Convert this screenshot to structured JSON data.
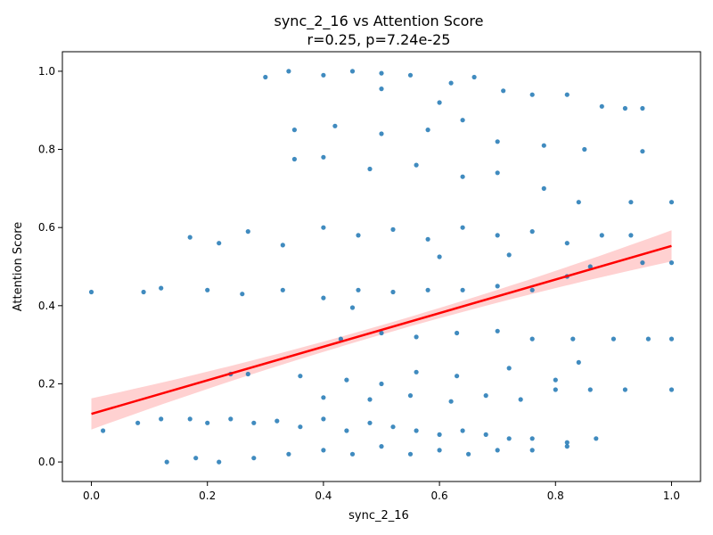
{
  "chart_data": {
    "type": "scatter",
    "title": "sync_2_16 vs Attention Score",
    "subtitle": "r=0.25, p=7.24e-25",
    "xlabel": "sync_2_16",
    "ylabel": "Attention Score",
    "xlim": [
      -0.05,
      1.05
    ],
    "ylim": [
      -0.05,
      1.05
    ],
    "xticks": [
      "0.0",
      "0.2",
      "0.4",
      "0.6",
      "0.8",
      "1.0"
    ],
    "xtick_values": [
      0.0,
      0.2,
      0.4,
      0.6,
      0.8,
      1.0
    ],
    "yticks": [
      "0.0",
      "0.2",
      "0.4",
      "0.6",
      "0.8",
      "1.0"
    ],
    "ytick_values": [
      0.0,
      0.2,
      0.4,
      0.6,
      0.8,
      1.0
    ],
    "grid": false,
    "colors": {
      "points": "#1f77b4",
      "regression": "#ff0000",
      "ci_band": "#ffb3b3"
    },
    "regression": {
      "slope": 0.43,
      "intercept": 0.123,
      "x_range": [
        0.0,
        1.0
      ],
      "ci_halfwidth_at_ends": 0.04,
      "ci_halfwidth_at_center": 0.012
    },
    "points": [
      {
        "x": 0.3,
        "y": 0.985
      },
      {
        "x": 0.34,
        "y": 1.0
      },
      {
        "x": 0.4,
        "y": 0.99
      },
      {
        "x": 0.45,
        "y": 1.0
      },
      {
        "x": 0.5,
        "y": 0.995
      },
      {
        "x": 0.55,
        "y": 0.99
      },
      {
        "x": 0.62,
        "y": 0.97
      },
      {
        "x": 0.66,
        "y": 0.985
      },
      {
        "x": 0.71,
        "y": 0.95
      },
      {
        "x": 0.76,
        "y": 0.94
      },
      {
        "x": 0.82,
        "y": 0.94
      },
      {
        "x": 0.88,
        "y": 0.91
      },
      {
        "x": 0.92,
        "y": 0.905
      },
      {
        "x": 0.95,
        "y": 0.905
      },
      {
        "x": 0.5,
        "y": 0.955
      },
      {
        "x": 0.6,
        "y": 0.92
      },
      {
        "x": 0.35,
        "y": 0.85
      },
      {
        "x": 0.42,
        "y": 0.86
      },
      {
        "x": 0.5,
        "y": 0.84
      },
      {
        "x": 0.58,
        "y": 0.85
      },
      {
        "x": 0.64,
        "y": 0.875
      },
      {
        "x": 0.7,
        "y": 0.82
      },
      {
        "x": 0.78,
        "y": 0.81
      },
      {
        "x": 0.85,
        "y": 0.8
      },
      {
        "x": 0.95,
        "y": 0.795
      },
      {
        "x": 0.4,
        "y": 0.78
      },
      {
        "x": 0.48,
        "y": 0.75
      },
      {
        "x": 0.56,
        "y": 0.76
      },
      {
        "x": 0.64,
        "y": 0.73
      },
      {
        "x": 0.7,
        "y": 0.74
      },
      {
        "x": 0.35,
        "y": 0.775
      },
      {
        "x": 0.78,
        "y": 0.7
      },
      {
        "x": 0.84,
        "y": 0.665
      },
      {
        "x": 0.93,
        "y": 0.665
      },
      {
        "x": 1.0,
        "y": 0.665
      },
      {
        "x": 0.17,
        "y": 0.575
      },
      {
        "x": 0.22,
        "y": 0.56
      },
      {
        "x": 0.27,
        "y": 0.59
      },
      {
        "x": 0.33,
        "y": 0.555
      },
      {
        "x": 0.4,
        "y": 0.6
      },
      {
        "x": 0.46,
        "y": 0.58
      },
      {
        "x": 0.52,
        "y": 0.595
      },
      {
        "x": 0.58,
        "y": 0.57
      },
      {
        "x": 0.64,
        "y": 0.6
      },
      {
        "x": 0.7,
        "y": 0.58
      },
      {
        "x": 0.76,
        "y": 0.59
      },
      {
        "x": 0.82,
        "y": 0.56
      },
      {
        "x": 0.88,
        "y": 0.58
      },
      {
        "x": 0.93,
        "y": 0.58
      },
      {
        "x": 0.6,
        "y": 0.525
      },
      {
        "x": 0.72,
        "y": 0.53
      },
      {
        "x": 0.86,
        "y": 0.5
      },
      {
        "x": 0.95,
        "y": 0.51
      },
      {
        "x": 1.0,
        "y": 0.51
      },
      {
        "x": 0.0,
        "y": 0.435
      },
      {
        "x": 0.09,
        "y": 0.435
      },
      {
        "x": 0.12,
        "y": 0.445
      },
      {
        "x": 0.2,
        "y": 0.44
      },
      {
        "x": 0.26,
        "y": 0.43
      },
      {
        "x": 0.33,
        "y": 0.44
      },
      {
        "x": 0.4,
        "y": 0.42
      },
      {
        "x": 0.46,
        "y": 0.44
      },
      {
        "x": 0.52,
        "y": 0.435
      },
      {
        "x": 0.58,
        "y": 0.44
      },
      {
        "x": 0.64,
        "y": 0.44
      },
      {
        "x": 0.7,
        "y": 0.45
      },
      {
        "x": 0.76,
        "y": 0.44
      },
      {
        "x": 0.82,
        "y": 0.475
      },
      {
        "x": 0.45,
        "y": 0.395
      },
      {
        "x": 0.43,
        "y": 0.315
      },
      {
        "x": 0.5,
        "y": 0.33
      },
      {
        "x": 0.56,
        "y": 0.32
      },
      {
        "x": 0.63,
        "y": 0.33
      },
      {
        "x": 0.7,
        "y": 0.335
      },
      {
        "x": 0.76,
        "y": 0.315
      },
      {
        "x": 0.83,
        "y": 0.315
      },
      {
        "x": 0.9,
        "y": 0.315
      },
      {
        "x": 0.96,
        "y": 0.315
      },
      {
        "x": 1.0,
        "y": 0.315
      },
      {
        "x": 0.24,
        "y": 0.225
      },
      {
        "x": 0.27,
        "y": 0.225
      },
      {
        "x": 0.36,
        "y": 0.22
      },
      {
        "x": 0.44,
        "y": 0.21
      },
      {
        "x": 0.5,
        "y": 0.2
      },
      {
        "x": 0.56,
        "y": 0.23
      },
      {
        "x": 0.63,
        "y": 0.22
      },
      {
        "x": 0.72,
        "y": 0.24
      },
      {
        "x": 0.8,
        "y": 0.21
      },
      {
        "x": 0.84,
        "y": 0.255
      },
      {
        "x": 0.4,
        "y": 0.165
      },
      {
        "x": 0.48,
        "y": 0.16
      },
      {
        "x": 0.55,
        "y": 0.17
      },
      {
        "x": 0.62,
        "y": 0.155
      },
      {
        "x": 0.68,
        "y": 0.17
      },
      {
        "x": 0.74,
        "y": 0.16
      },
      {
        "x": 0.8,
        "y": 0.185
      },
      {
        "x": 0.86,
        "y": 0.185
      },
      {
        "x": 0.92,
        "y": 0.185
      },
      {
        "x": 1.0,
        "y": 0.185
      },
      {
        "x": 0.02,
        "y": 0.08
      },
      {
        "x": 0.08,
        "y": 0.1
      },
      {
        "x": 0.12,
        "y": 0.11
      },
      {
        "x": 0.17,
        "y": 0.11
      },
      {
        "x": 0.2,
        "y": 0.1
      },
      {
        "x": 0.24,
        "y": 0.11
      },
      {
        "x": 0.28,
        "y": 0.1
      },
      {
        "x": 0.32,
        "y": 0.105
      },
      {
        "x": 0.36,
        "y": 0.09
      },
      {
        "x": 0.4,
        "y": 0.11
      },
      {
        "x": 0.44,
        "y": 0.08
      },
      {
        "x": 0.48,
        "y": 0.1
      },
      {
        "x": 0.52,
        "y": 0.09
      },
      {
        "x": 0.56,
        "y": 0.08
      },
      {
        "x": 0.6,
        "y": 0.07
      },
      {
        "x": 0.64,
        "y": 0.08
      },
      {
        "x": 0.68,
        "y": 0.07
      },
      {
        "x": 0.72,
        "y": 0.06
      },
      {
        "x": 0.76,
        "y": 0.06
      },
      {
        "x": 0.82,
        "y": 0.05
      },
      {
        "x": 0.87,
        "y": 0.06
      },
      {
        "x": 0.13,
        "y": 0.0
      },
      {
        "x": 0.18,
        "y": 0.01
      },
      {
        "x": 0.22,
        "y": 0.0
      },
      {
        "x": 0.28,
        "y": 0.01
      },
      {
        "x": 0.34,
        "y": 0.02
      },
      {
        "x": 0.4,
        "y": 0.03
      },
      {
        "x": 0.45,
        "y": 0.02
      },
      {
        "x": 0.5,
        "y": 0.04
      },
      {
        "x": 0.55,
        "y": 0.02
      },
      {
        "x": 0.6,
        "y": 0.03
      },
      {
        "x": 0.65,
        "y": 0.02
      },
      {
        "x": 0.7,
        "y": 0.03
      },
      {
        "x": 0.76,
        "y": 0.03
      },
      {
        "x": 0.82,
        "y": 0.04
      }
    ]
  }
}
